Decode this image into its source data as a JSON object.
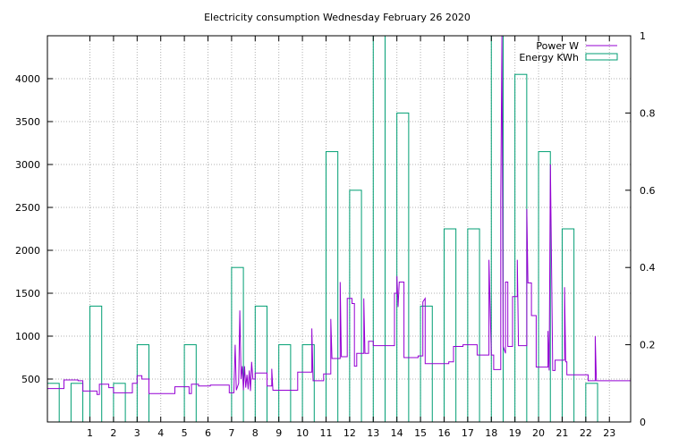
{
  "chart_data": {
    "type": "line",
    "title": "Electricity consumption Wednesday February 26 2020",
    "xlabel": "",
    "ylabel": "",
    "y2label": "",
    "grid": true,
    "legend_position": "top-right",
    "xlim": [
      -0.8,
      23.9
    ],
    "ylim": [
      0,
      4500
    ],
    "y2lim": [
      0,
      1
    ],
    "x_ticks": [
      1,
      2,
      3,
      4,
      5,
      6,
      7,
      8,
      9,
      10,
      11,
      12,
      13,
      14,
      15,
      16,
      17,
      18,
      19,
      20,
      21,
      22,
      23
    ],
    "y_ticks": [
      500,
      1000,
      1500,
      2000,
      2500,
      3000,
      3500,
      4000
    ],
    "y2_ticks": [
      0,
      0.2,
      0.4,
      0.6,
      0.8,
      1
    ],
    "y2_tick_labels": [
      "0",
      "0.2",
      "0.4",
      "0.6",
      "0.8",
      "1"
    ],
    "series": [
      {
        "name": "Power W",
        "axis": "y1",
        "color": "#9400d3",
        "points": [
          [
            -0.8,
            390
          ],
          [
            -0.1,
            390
          ],
          [
            -0.1,
            490
          ],
          [
            0.5,
            490
          ],
          [
            0.5,
            480
          ],
          [
            0.7,
            480
          ],
          [
            0.7,
            360
          ],
          [
            1.3,
            360
          ],
          [
            1.3,
            320
          ],
          [
            1.4,
            320
          ],
          [
            1.4,
            440
          ],
          [
            1.8,
            440
          ],
          [
            1.8,
            400
          ],
          [
            2.0,
            400
          ],
          [
            2.0,
            340
          ],
          [
            2.8,
            340
          ],
          [
            2.8,
            450
          ],
          [
            3.0,
            450
          ],
          [
            3.0,
            540
          ],
          [
            3.2,
            540
          ],
          [
            3.2,
            500
          ],
          [
            3.5,
            500
          ],
          [
            3.5,
            330
          ],
          [
            4.6,
            330
          ],
          [
            4.6,
            410
          ],
          [
            5.2,
            410
          ],
          [
            5.2,
            330
          ],
          [
            5.3,
            330
          ],
          [
            5.3,
            440
          ],
          [
            5.6,
            440
          ],
          [
            5.6,
            420
          ],
          [
            6.1,
            420
          ],
          [
            6.1,
            430
          ],
          [
            6.9,
            430
          ],
          [
            6.9,
            340
          ],
          [
            7.1,
            340
          ],
          [
            7.1,
            370
          ],
          [
            7.15,
            900
          ],
          [
            7.2,
            370
          ],
          [
            7.3,
            450
          ],
          [
            7.35,
            1300
          ],
          [
            7.4,
            500
          ],
          [
            7.45,
            650
          ],
          [
            7.5,
            370
          ],
          [
            7.55,
            650
          ],
          [
            7.6,
            400
          ],
          [
            7.65,
            550
          ],
          [
            7.7,
            380
          ],
          [
            7.75,
            600
          ],
          [
            7.8,
            360
          ],
          [
            7.85,
            700
          ],
          [
            7.9,
            500
          ],
          [
            8.0,
            500
          ],
          [
            8.0,
            570
          ],
          [
            8.5,
            570
          ],
          [
            8.5,
            420
          ],
          [
            8.7,
            420
          ],
          [
            8.7,
            620
          ],
          [
            8.75,
            370
          ],
          [
            9.8,
            370
          ],
          [
            9.8,
            580
          ],
          [
            10.4,
            580
          ],
          [
            10.4,
            1090
          ],
          [
            10.45,
            480
          ],
          [
            10.9,
            480
          ],
          [
            10.9,
            560
          ],
          [
            11.2,
            560
          ],
          [
            11.2,
            1200
          ],
          [
            11.25,
            740
          ],
          [
            11.6,
            740
          ],
          [
            11.6,
            1630
          ],
          [
            11.65,
            760
          ],
          [
            11.9,
            760
          ],
          [
            11.9,
            1440
          ],
          [
            12.1,
            1440
          ],
          [
            12.1,
            1380
          ],
          [
            12.2,
            1380
          ],
          [
            12.2,
            650
          ],
          [
            12.3,
            650
          ],
          [
            12.3,
            800
          ],
          [
            12.6,
            800
          ],
          [
            12.6,
            1440
          ],
          [
            12.65,
            800
          ],
          [
            12.8,
            800
          ],
          [
            12.8,
            940
          ],
          [
            13.0,
            940
          ],
          [
            13.0,
            890
          ],
          [
            13.9,
            890
          ],
          [
            13.9,
            1500
          ],
          [
            14.0,
            1500
          ],
          [
            14.0,
            1700
          ],
          [
            14.05,
            1340
          ],
          [
            14.1,
            1630
          ],
          [
            14.3,
            1630
          ],
          [
            14.3,
            750
          ],
          [
            14.9,
            750
          ],
          [
            14.9,
            770
          ],
          [
            15.1,
            770
          ],
          [
            15.1,
            1400
          ],
          [
            15.2,
            1440
          ],
          [
            15.2,
            680
          ],
          [
            16.2,
            680
          ],
          [
            16.2,
            700
          ],
          [
            16.4,
            700
          ],
          [
            16.4,
            880
          ],
          [
            16.8,
            880
          ],
          [
            16.8,
            900
          ],
          [
            17.4,
            900
          ],
          [
            17.4,
            780
          ],
          [
            17.9,
            780
          ],
          [
            17.9,
            1890
          ],
          [
            18.0,
            780
          ],
          [
            18.1,
            780
          ],
          [
            18.1,
            610
          ],
          [
            18.4,
            610
          ],
          [
            18.4,
            2580
          ],
          [
            18.45,
            4500
          ],
          [
            18.5,
            880
          ],
          [
            18.6,
            800
          ],
          [
            18.6,
            1630
          ],
          [
            18.7,
            1630
          ],
          [
            18.7,
            880
          ],
          [
            18.9,
            880
          ],
          [
            18.9,
            1460
          ],
          [
            19.1,
            1460
          ],
          [
            19.1,
            1890
          ],
          [
            19.15,
            890
          ],
          [
            19.5,
            890
          ],
          [
            19.5,
            2480
          ],
          [
            19.55,
            1620
          ],
          [
            19.7,
            1620
          ],
          [
            19.7,
            1240
          ],
          [
            19.9,
            1240
          ],
          [
            19.9,
            640
          ],
          [
            20.4,
            640
          ],
          [
            20.4,
            1060
          ],
          [
            20.45,
            600
          ],
          [
            20.5,
            3000
          ],
          [
            20.55,
            1800
          ],
          [
            20.6,
            600
          ],
          [
            20.7,
            600
          ],
          [
            20.7,
            720
          ],
          [
            21.1,
            720
          ],
          [
            21.1,
            1570
          ],
          [
            21.15,
            700
          ],
          [
            21.2,
            700
          ],
          [
            21.2,
            550
          ],
          [
            22.1,
            550
          ],
          [
            22.1,
            480
          ],
          [
            22.4,
            480
          ],
          [
            22.4,
            1000
          ],
          [
            22.45,
            480
          ],
          [
            23.9,
            480
          ]
        ]
      },
      {
        "name": "Energy KWh",
        "axis": "y2",
        "color": "#009e73",
        "bars": [
          [
            -0.8,
            0.1
          ],
          [
            0.2,
            0.1
          ],
          [
            1.0,
            0.3
          ],
          [
            2.0,
            0.1
          ],
          [
            3.0,
            0.2
          ],
          [
            5.0,
            0.2
          ],
          [
            7.0,
            0.4
          ],
          [
            8.0,
            0.3
          ],
          [
            9.0,
            0.2
          ],
          [
            10.0,
            0.2
          ],
          [
            11.0,
            0.7
          ],
          [
            12.0,
            0.6
          ],
          [
            13.0,
            1.0
          ],
          [
            14.0,
            0.8
          ],
          [
            15.0,
            0.3
          ],
          [
            16.0,
            0.5
          ],
          [
            17.0,
            0.5
          ],
          [
            18.0,
            1.0
          ],
          [
            19.0,
            0.9
          ],
          [
            20.0,
            0.7
          ],
          [
            21.0,
            0.5
          ],
          [
            22.0,
            0.1
          ]
        ],
        "bar_width": 0.5
      }
    ]
  }
}
